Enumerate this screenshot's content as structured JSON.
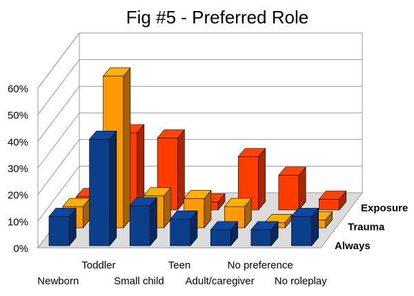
{
  "chart_data": {
    "type": "bar3d",
    "title": "Fig #5 - Preferred Role",
    "categories": [
      "Newborn",
      "Toddler",
      "Small child",
      "Teen",
      "Adult/caregiver",
      "No preference",
      "No roleplay"
    ],
    "series": [
      {
        "name": "Always",
        "color": "#0a3f8c",
        "values": [
          11,
          40,
          15,
          10,
          6,
          6,
          11
        ]
      },
      {
        "name": "Trauma",
        "color": "#ff9900",
        "values": [
          8,
          57,
          12,
          11,
          8,
          2,
          3
        ]
      },
      {
        "name": "Exposure",
        "color": "#ff3c00",
        "values": [
          5,
          29,
          27,
          3,
          20,
          13,
          4
        ]
      }
    ],
    "ylim": [
      0,
      60
    ],
    "yticks": [
      {
        "value": 0,
        "label": "0%"
      },
      {
        "value": 10,
        "label": "10%"
      },
      {
        "value": 20,
        "label": "20%"
      },
      {
        "value": 30,
        "label": "30%"
      },
      {
        "value": 40,
        "label": "40%"
      },
      {
        "value": 50,
        "label": "50%"
      },
      {
        "value": 60,
        "label": "60%"
      }
    ],
    "grid": true
  }
}
